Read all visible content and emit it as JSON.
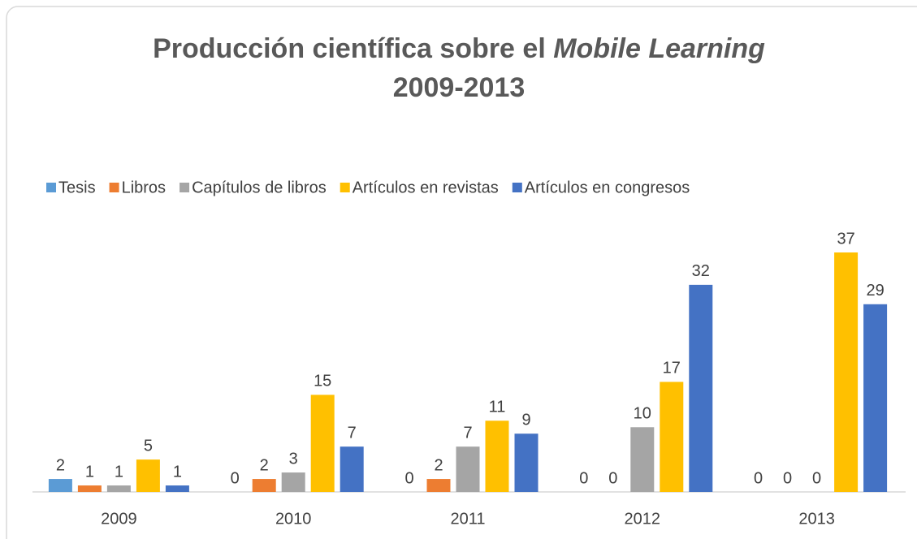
{
  "chart_data": {
    "type": "bar",
    "title": "Producción científica sobre el",
    "title_italic": "Mobile Learning",
    "subtitle": "2009-2013",
    "categories": [
      "2009",
      "2010",
      "2011",
      "2012",
      "2013"
    ],
    "series": [
      {
        "name": "Tesis",
        "color": "#5b9bd5",
        "values": [
          2,
          0,
          0,
          0,
          0
        ]
      },
      {
        "name": "Libros",
        "color": "#ed7d31",
        "values": [
          1,
          2,
          2,
          0,
          0
        ]
      },
      {
        "name": "Capítulos de libros",
        "color": "#a5a5a5",
        "values": [
          1,
          3,
          7,
          10,
          0
        ]
      },
      {
        "name": "Artículos en revistas",
        "color": "#ffc000",
        "values": [
          5,
          15,
          11,
          17,
          37
        ]
      },
      {
        "name": "Artículos en congresos",
        "color": "#4472c4",
        "values": [
          1,
          7,
          9,
          32,
          29
        ]
      }
    ],
    "legend": "top"
  }
}
